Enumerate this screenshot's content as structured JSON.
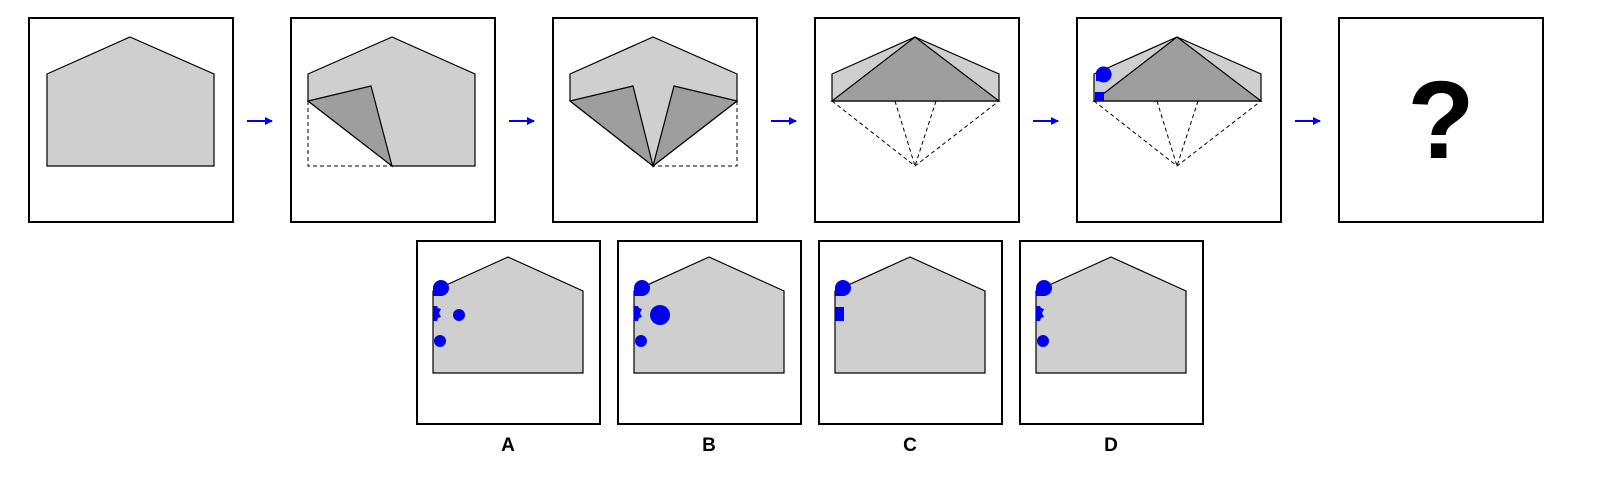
{
  "puzzle": {
    "question_mark": "?",
    "colors": {
      "paper": "#cfcfcf",
      "folded_flap": "#9e9e9e",
      "punch": "#0000ee",
      "arrow": "#0000ee",
      "frame": "#000000"
    }
  },
  "options": [
    {
      "label": "A"
    },
    {
      "label": "B"
    },
    {
      "label": "C"
    },
    {
      "label": "D"
    }
  ]
}
